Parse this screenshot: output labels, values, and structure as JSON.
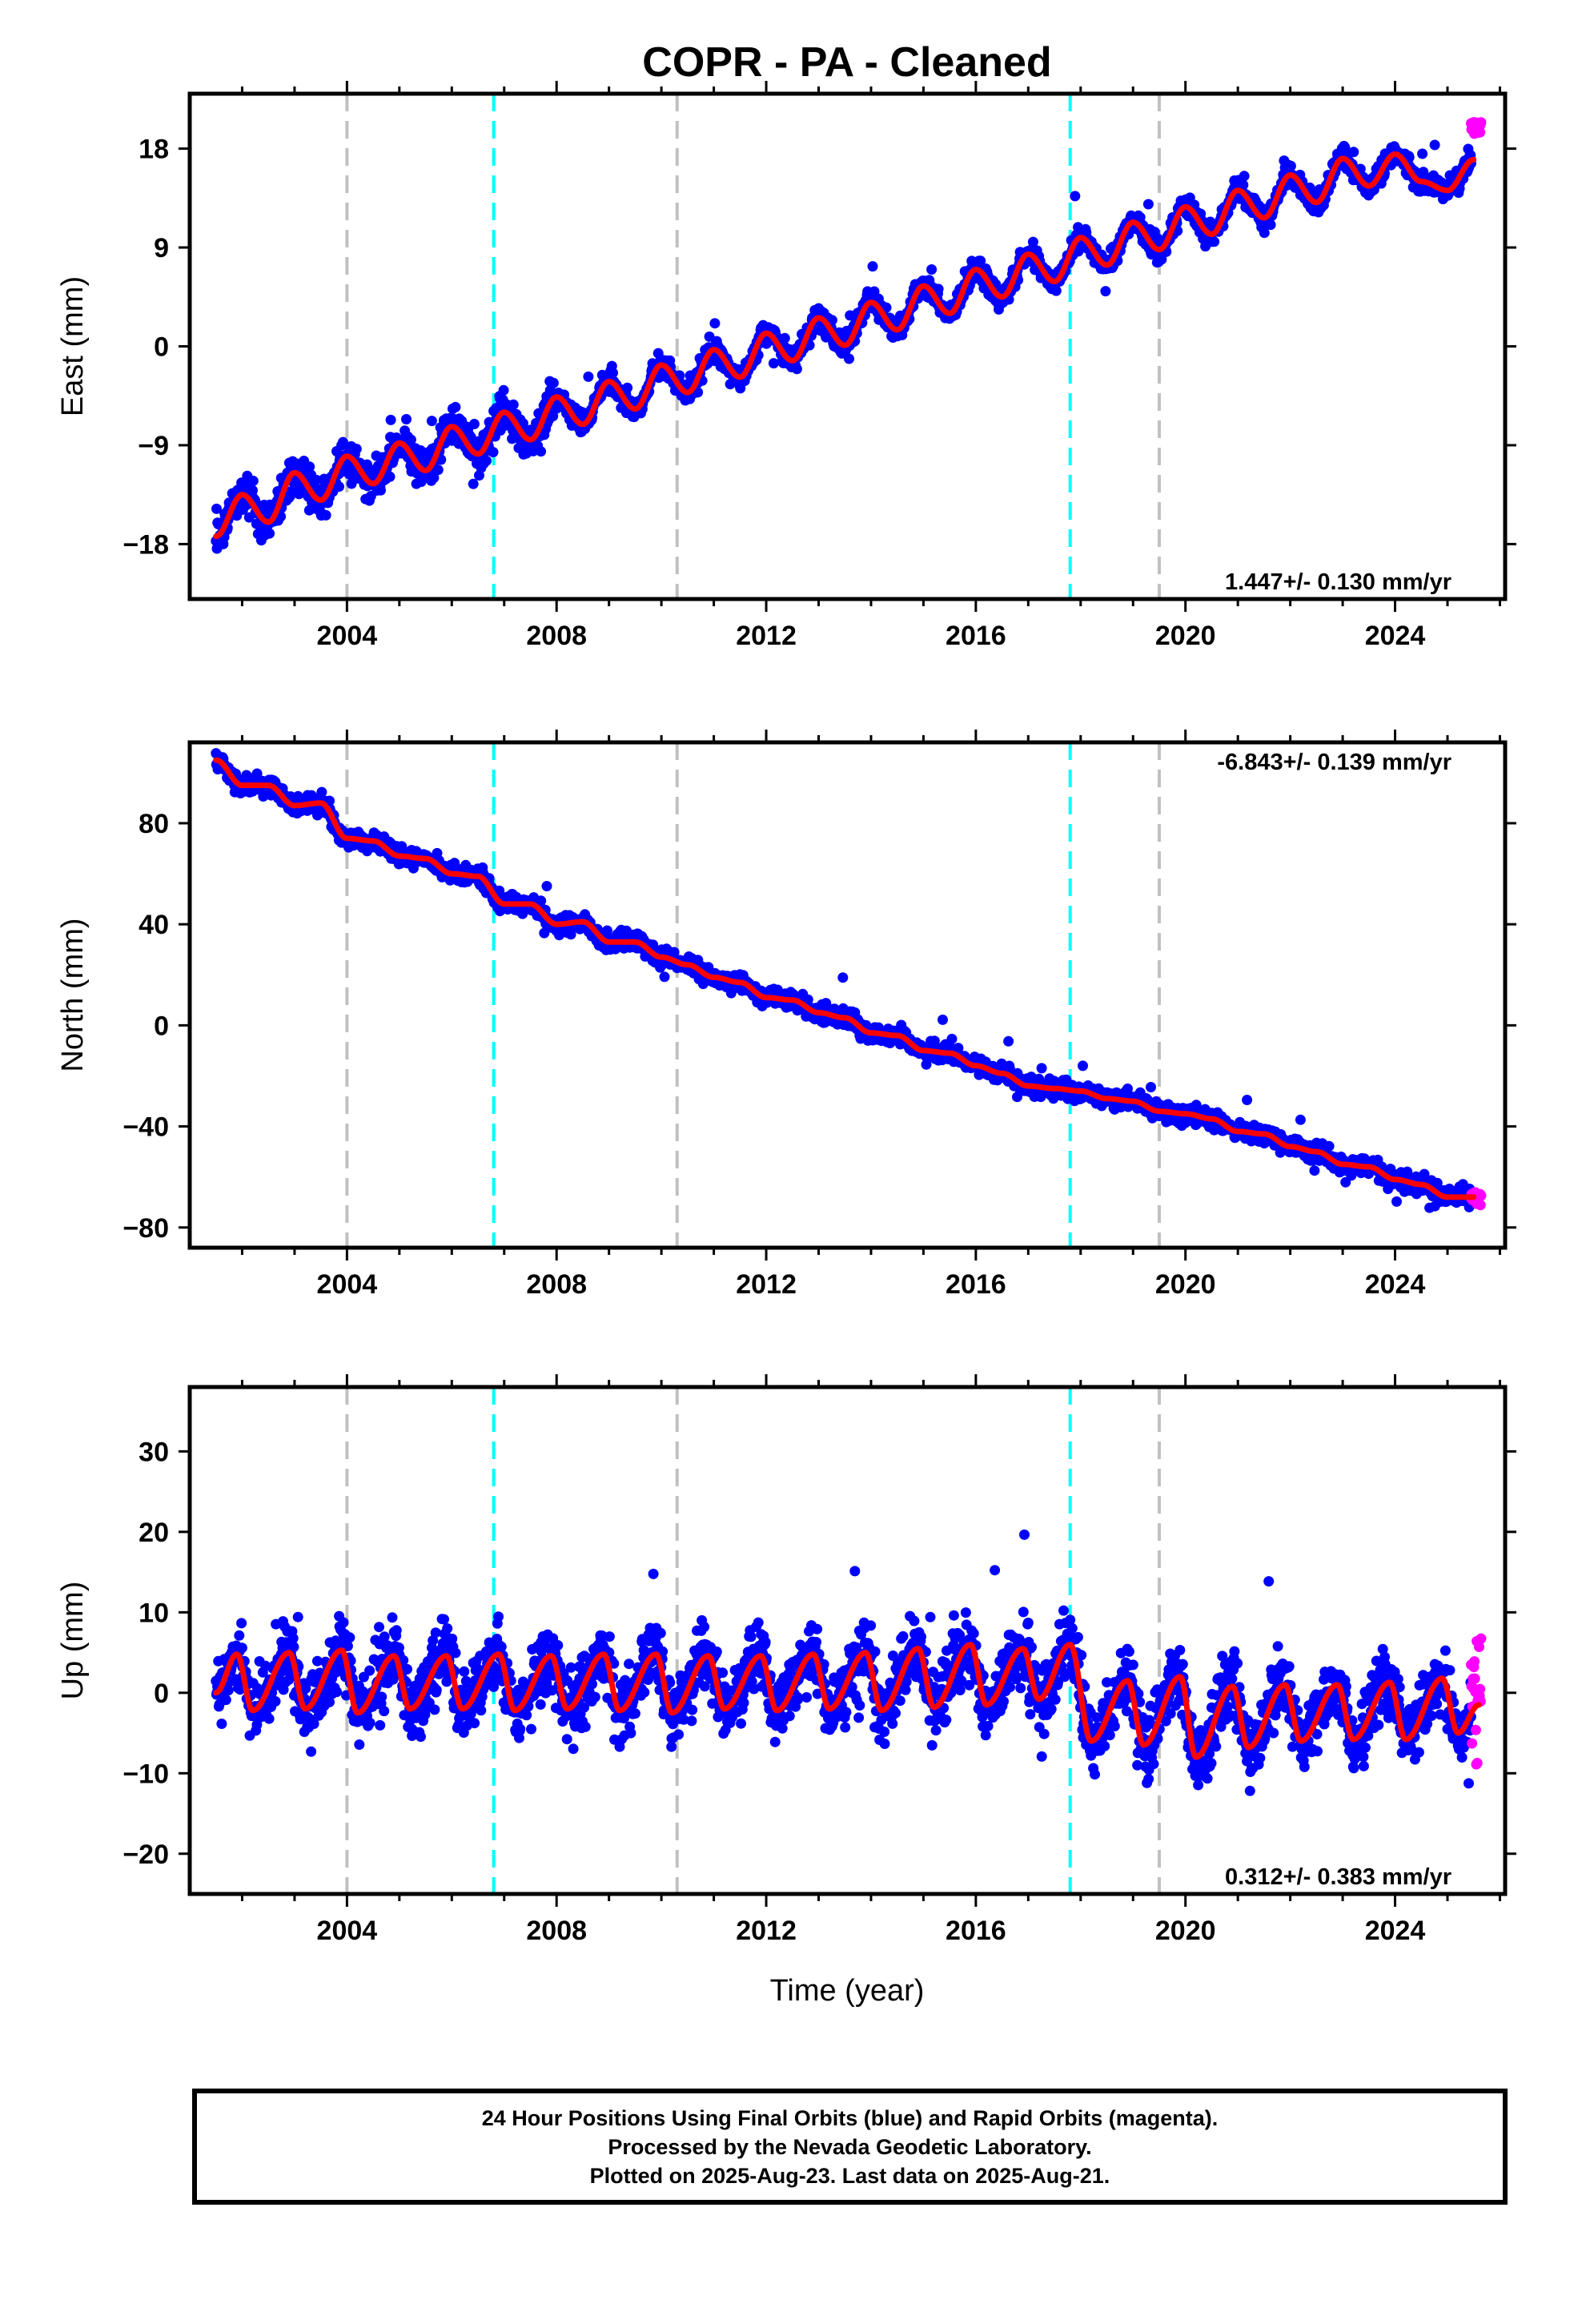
{
  "figure": {
    "title": "COPR  - PA - Cleaned",
    "xlabel": "Time (year)",
    "colors": {
      "final_orbits": "#0000ff",
      "rapid_orbits": "#ff00ff",
      "model_fit": "#ff0000",
      "equipment_change_line": "#c0c0c0",
      "event_line": "#00ffff"
    },
    "vertical_markers": {
      "gray_dashed": [
        2004.0,
        2010.3,
        2019.5
      ],
      "cyan_dashed": [
        2006.8,
        2017.8
      ]
    },
    "footer_lines": [
      "24 Hour Positions Using Final Orbits (blue) and Rapid Orbits (magenta).",
      "Processed by the Nevada Geodetic Laboratory.",
      "Plotted on 2025-Aug-23. Last data on 2025-Aug-21."
    ]
  },
  "chart_data": [
    {
      "type": "scatter",
      "panel": "east",
      "ylabel": "East (mm)",
      "rate_label": "1.447+/- 0.130 mm/yr",
      "rate_position": "bottom-right",
      "xlim": [
        2001.0,
        2026.1
      ],
      "ylim": [
        -23,
        23
      ],
      "xticks": [
        "2004",
        "2008",
        "2012",
        "2016",
        "2020",
        "2024"
      ],
      "yticks": [
        "18",
        "9",
        "0",
        "-9",
        "-18"
      ],
      "data_start": 2001.5,
      "data_end": 2025.64,
      "rapid_start": 2025.45,
      "series": [
        {
          "name": "model",
          "x": [
            2001.5,
            2002.0,
            2002.5,
            2003.0,
            2003.5,
            2004.0,
            2004.5,
            2005.0,
            2005.5,
            2006.0,
            2006.5,
            2007.0,
            2007.5,
            2008.0,
            2008.5,
            2009.0,
            2009.5,
            2010.0,
            2010.5,
            2011.0,
            2011.5,
            2012.0,
            2012.5,
            2013.0,
            2013.5,
            2014.0,
            2014.5,
            2015.0,
            2015.5,
            2016.0,
            2016.5,
            2017.0,
            2017.5,
            2018.0,
            2018.5,
            2019.0,
            2019.5,
            2020.0,
            2020.5,
            2021.0,
            2021.5,
            2022.0,
            2022.5,
            2023.0,
            2023.5,
            2024.0,
            2024.5,
            2025.0,
            2025.5
          ],
          "y": [
            -17.3,
            -13.5,
            -16.0,
            -11.5,
            -14.0,
            -10.0,
            -12.5,
            -8.8,
            -11.3,
            -7.3,
            -9.8,
            -6.0,
            -8.5,
            -4.6,
            -7.1,
            -3.2,
            -5.7,
            -1.7,
            -4.2,
            -0.3,
            -2.8,
            1.2,
            -1.3,
            2.6,
            0.1,
            4.0,
            1.5,
            5.5,
            3.0,
            7.0,
            4.5,
            8.4,
            5.9,
            9.9,
            7.4,
            11.3,
            8.8,
            12.7,
            10.2,
            14.2,
            11.7,
            15.6,
            13.1,
            17.1,
            14.6,
            17.5,
            15.0,
            14.2,
            17.0
          ]
        }
      ]
    },
    {
      "type": "scatter",
      "panel": "north",
      "ylabel": "North (mm)",
      "rate_label": "-6.843+/- 0.139 mm/yr",
      "rate_position": "top-right",
      "xlim": [
        2001.0,
        2026.1
      ],
      "ylim": [
        -88,
        112
      ],
      "xticks": [
        "2004",
        "2008",
        "2012",
        "2016",
        "2020",
        "2024"
      ],
      "yticks": [
        "80",
        "40",
        "0",
        "-40",
        "-80"
      ],
      "data_start": 2001.5,
      "data_end": 2025.64,
      "rapid_start": 2025.45,
      "series": [
        {
          "name": "model",
          "x": [
            2001.5,
            2002.0,
            2002.5,
            2003.0,
            2003.5,
            2004.0,
            2004.5,
            2005.0,
            2005.5,
            2006.0,
            2006.5,
            2007.0,
            2007.5,
            2008.0,
            2008.5,
            2009.0,
            2009.5,
            2010.0,
            2010.5,
            2011.0,
            2011.5,
            2012.0,
            2012.5,
            2013.0,
            2013.5,
            2014.0,
            2014.5,
            2015.0,
            2015.5,
            2016.0,
            2016.5,
            2017.0,
            2017.5,
            2018.0,
            2018.5,
            2019.0,
            2019.5,
            2020.0,
            2020.5,
            2021.0,
            2021.5,
            2022.0,
            2022.5,
            2023.0,
            2023.5,
            2024.0,
            2024.5,
            2025.0,
            2025.5
          ],
          "y": [
            105,
            95,
            95,
            87,
            88,
            74,
            73,
            67,
            66,
            60,
            59,
            48,
            48,
            40,
            41,
            33,
            33,
            27,
            24,
            19,
            17,
            11,
            10,
            5,
            3,
            -3,
            -4,
            -10,
            -11,
            -16,
            -19,
            -24,
            -25,
            -26,
            -29,
            -30,
            -34,
            -35,
            -37,
            -42,
            -43,
            -48,
            -50,
            -55,
            -56,
            -61,
            -63,
            -68,
            -68
          ]
        }
      ]
    },
    {
      "type": "scatter",
      "panel": "up",
      "ylabel": "Up (mm)",
      "rate_label": "0.312+/- 0.383 mm/yr",
      "rate_position": "bottom-right",
      "xlim": [
        2001.0,
        2026.1
      ],
      "ylim": [
        -25,
        38
      ],
      "xticks": [
        "2004",
        "2008",
        "2012",
        "2016",
        "2020",
        "2024"
      ],
      "yticks": [
        "30",
        "20",
        "10",
        "0",
        "-10",
        "-20"
      ],
      "data_start": 2001.5,
      "data_end": 2025.64,
      "rapid_start": 2025.45,
      "series": [
        {
          "name": "model",
          "x": [
            2001.5,
            2001.9,
            2002.2,
            2002.9,
            2003.2,
            2003.9,
            2004.2,
            2004.9,
            2005.2,
            2005.9,
            2006.2,
            2006.9,
            2007.2,
            2007.9,
            2008.2,
            2008.9,
            2009.2,
            2009.9,
            2010.2,
            2010.9,
            2011.2,
            2011.9,
            2012.2,
            2012.9,
            2013.2,
            2013.9,
            2014.2,
            2014.9,
            2015.2,
            2015.9,
            2016.2,
            2016.9,
            2017.2,
            2017.8,
            2018.2,
            2018.9,
            2019.2,
            2019.9,
            2020.2,
            2020.9,
            2021.2,
            2021.9,
            2022.2,
            2022.9,
            2023.2,
            2023.9,
            2024.2,
            2024.9,
            2025.2,
            2025.6
          ],
          "y": [
            0,
            4.8,
            -2.2,
            5.0,
            -2.0,
            5.3,
            -2.5,
            4.6,
            -2.0,
            4.6,
            -2.0,
            4.8,
            -2.2,
            4.6,
            -2.0,
            4.8,
            -2.2,
            4.8,
            -2.5,
            4.6,
            -2.0,
            4.6,
            -2.2,
            4.8,
            -2.0,
            5.0,
            -2.2,
            5.5,
            -1.8,
            6.0,
            -1.5,
            5.5,
            -0.8,
            6.0,
            -6.0,
            1.5,
            -6.5,
            2.0,
            -8.0,
            0.8,
            -6.8,
            1.0,
            -6.0,
            1.0,
            -5.8,
            1.3,
            -5.8,
            1.8,
            -5.0,
            -1.5
          ]
        }
      ]
    }
  ]
}
